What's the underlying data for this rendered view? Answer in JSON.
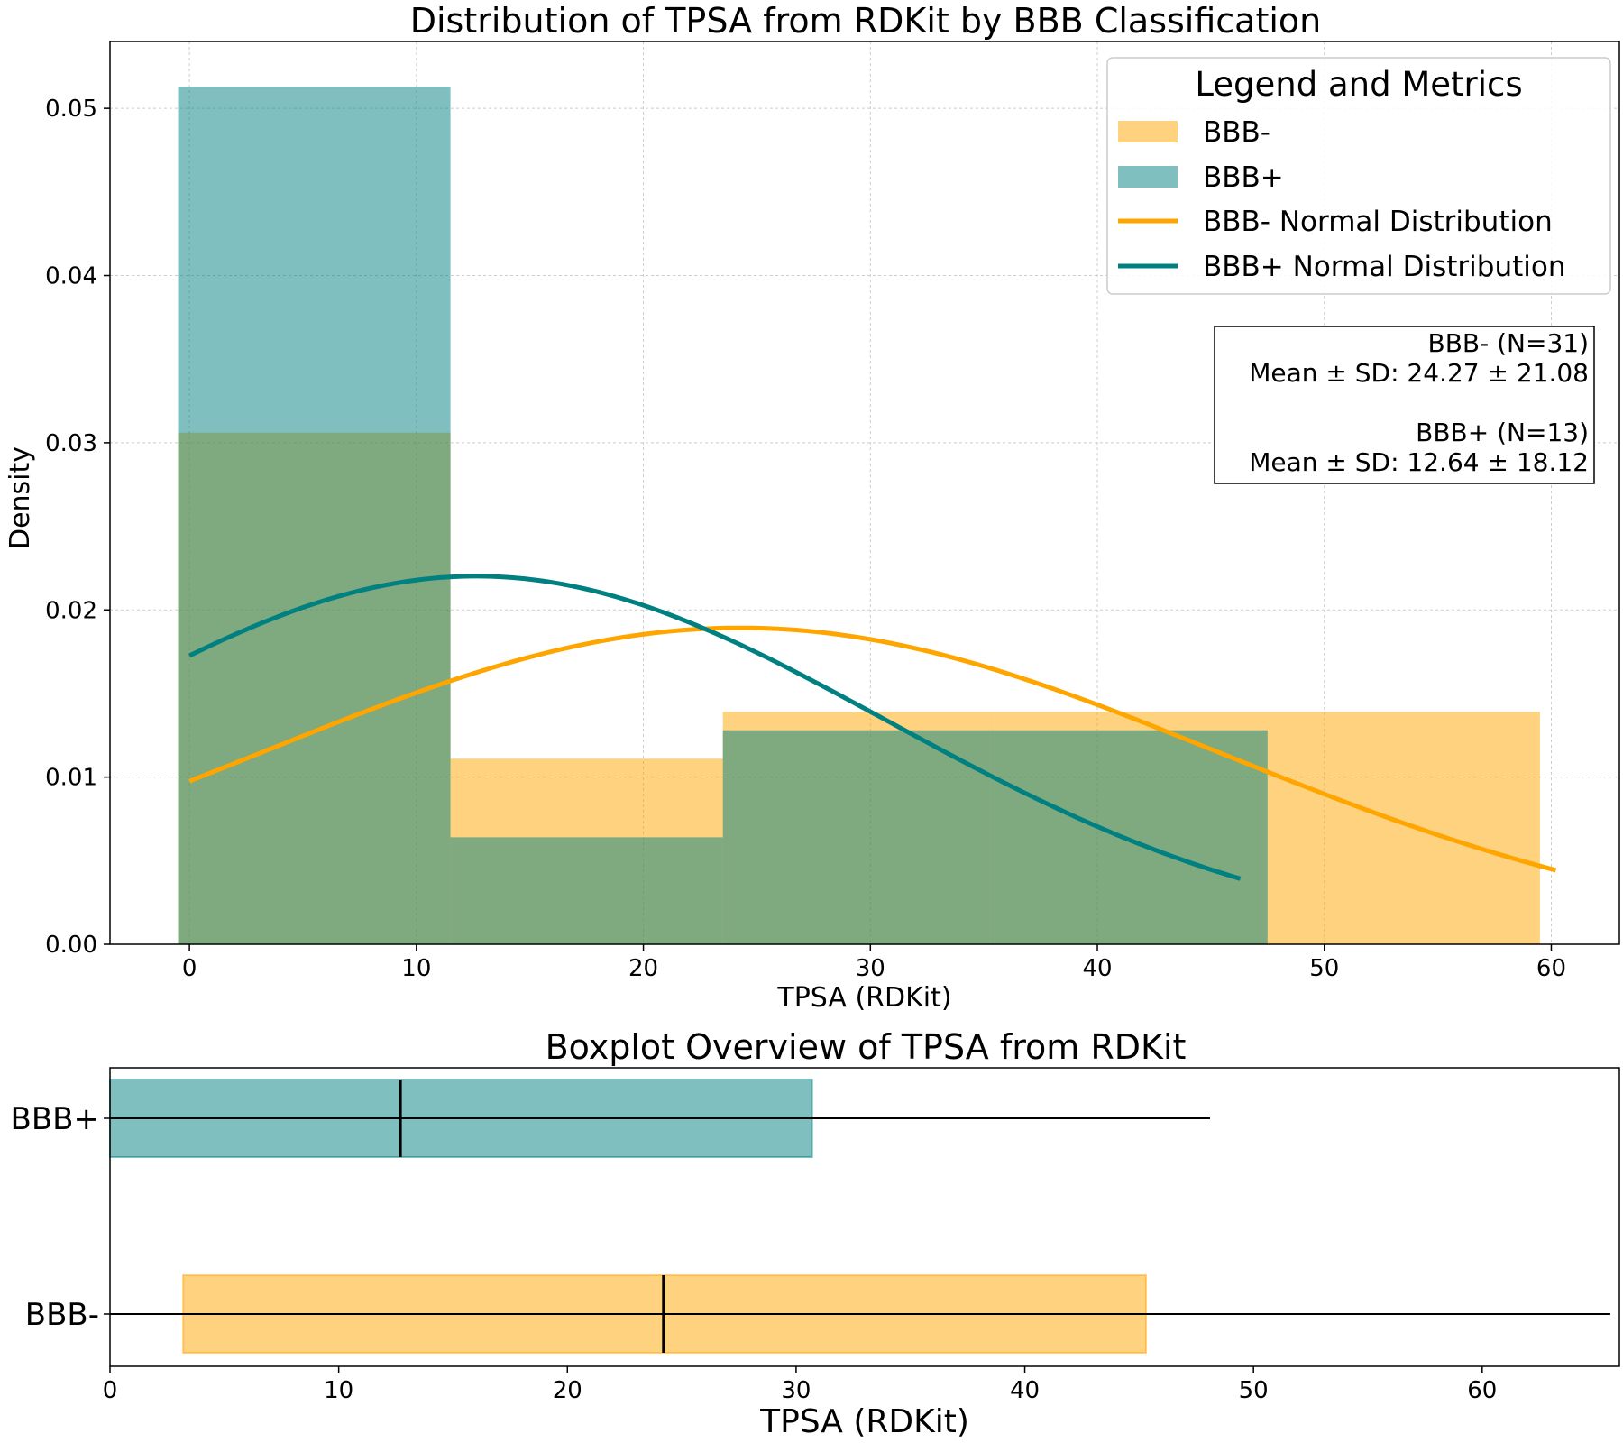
{
  "chart_data": [
    {
      "type": "histogram",
      "title": "Distribution of TPSA from RDKit by BBB Classification",
      "xlabel": "TPSA (RDKit)",
      "ylabel": "Density",
      "xlim": [
        -3.5,
        63
      ],
      "ylim": [
        0,
        0.054
      ],
      "xticks": [
        0,
        10,
        20,
        30,
        40,
        50,
        60
      ],
      "yticks": [
        0.0,
        0.01,
        0.02,
        0.03,
        0.04,
        0.05
      ],
      "ytick_labels": [
        "0.00",
        "0.01",
        "0.02",
        "0.03",
        "0.04",
        "0.05"
      ],
      "grid": true,
      "legend_position": "top-right",
      "legend_title": "Legend and Metrics",
      "series": [
        {
          "name": "BBB-",
          "kind": "histogram",
          "color": "#FFA500",
          "opacity": 0.5,
          "bins": [
            {
              "x0": -0.5,
              "x1": 11.5,
              "density": 0.0306
            },
            {
              "x0": 11.5,
              "x1": 23.5,
              "density": 0.0111
            },
            {
              "x0": 23.5,
              "x1": 35.5,
              "density": 0.0139
            },
            {
              "x0": 35.5,
              "x1": 47.5,
              "density": 0.0139
            },
            {
              "x0": 47.5,
              "x1": 59.5,
              "density": 0.0139
            }
          ]
        },
        {
          "name": "BBB+",
          "kind": "histogram",
          "color": "#008080",
          "opacity": 0.5,
          "bins": [
            {
              "x0": -0.5,
              "x1": 11.5,
              "density": 0.0513
            },
            {
              "x0": 11.5,
              "x1": 23.5,
              "density": 0.0064
            },
            {
              "x0": 23.5,
              "x1": 35.5,
              "density": 0.0128
            },
            {
              "x0": 35.5,
              "x1": 47.5,
              "density": 0.0128
            }
          ]
        },
        {
          "name": "BBB- Normal Distribution",
          "kind": "normal-curve",
          "color": "#FFA500",
          "mean": 24.27,
          "sd": 21.08,
          "x_range": [
            0,
            60.2
          ]
        },
        {
          "name": "BBB+ Normal Distribution",
          "kind": "normal-curve",
          "color": "#008080",
          "mean": 12.64,
          "sd": 18.12,
          "x_range": [
            0,
            46.3
          ]
        }
      ],
      "metrics": {
        "lines": [
          "BBB- (N=31)",
          "Mean ± SD: 24.27 ± 21.08",
          "",
          "BBB+ (N=13)",
          "Mean ± SD: 12.64 ± 18.12"
        ]
      }
    },
    {
      "type": "boxplot",
      "title": "Boxplot Overview of TPSA from RDKit",
      "xlabel": "TPSA (RDKit)",
      "xlim": [
        0,
        66
      ],
      "xticks": [
        0,
        10,
        20,
        30,
        40,
        50,
        60
      ],
      "orientation": "horizontal",
      "boxes": [
        {
          "name": "BBB+",
          "color": "#008080",
          "whisker_low": 0,
          "q1": 0,
          "median": 12.7,
          "q3": 30.7,
          "whisker_high": 48.1
        },
        {
          "name": "BBB-",
          "color": "#FFA500",
          "whisker_low": 0,
          "q1": 3.2,
          "median": 24.2,
          "q3": 45.3,
          "whisker_high": 65.6
        }
      ]
    }
  ]
}
